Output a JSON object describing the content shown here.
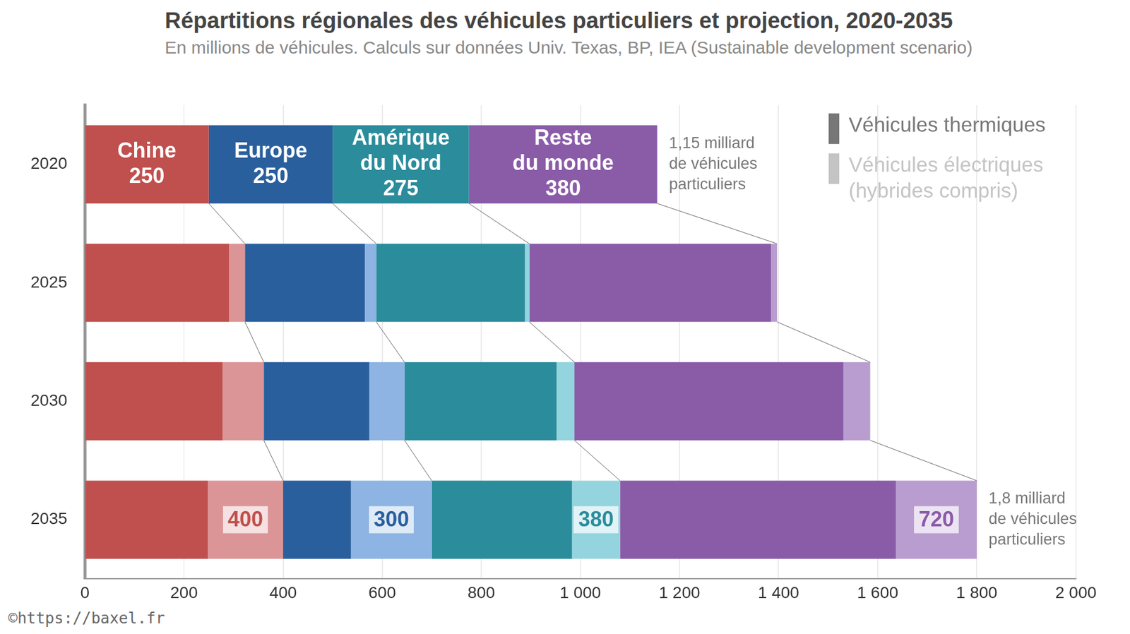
{
  "chart_data": {
    "type": "bar",
    "orientation": "horizontal",
    "stacked": true,
    "data_labels": true,
    "grid": true,
    "legend": "top-right",
    "title": "Répartitions régionales des véhicules particuliers et projection, 2020-2035",
    "subtitle": "En millions de véhicules. Calculs sur données Univ. Texas, BP, IEA (Sustainable development scenario)",
    "source": "©https://baxel.fr",
    "categories": [
      "2020",
      "2025",
      "2030",
      "2035"
    ],
    "legend_entries": [
      {
        "name": "Véhicules thermiques",
        "color": "#777777"
      },
      {
        "name": "Véhicules électriques\n(hybrides compris)",
        "color": "#c4c4c4"
      }
    ],
    "series": [
      {
        "name": "Chine",
        "color": "#c0504d",
        "values": [
          250,
          291,
          278,
          248
        ],
        "electric": {
          "color": "#dc9596",
          "values": [
            0,
            32,
            83,
            152
          ]
        },
        "totals": [
          250,
          null,
          null,
          400
        ],
        "label_color": "#c0504d"
      },
      {
        "name": "Europe",
        "color": "#2a5f9e",
        "values": [
          250,
          242,
          213,
          137
        ],
        "electric": {
          "color": "#8db4e2",
          "values": [
            0,
            23,
            71,
            163
          ]
        },
        "totals": [
          250,
          null,
          null,
          300
        ],
        "label_color": "#2a5f9e"
      },
      {
        "name": "Amérique du Nord",
        "color": "#2b8c9b",
        "values": [
          275,
          300,
          307,
          283
        ],
        "electric": {
          "color": "#93d4de",
          "values": [
            0,
            9,
            36,
            97
          ]
        },
        "totals": [
          275,
          null,
          null,
          380
        ],
        "label_color": "#2b8c9b"
      },
      {
        "name": "Reste du monde",
        "color": "#8a5ca8",
        "values": [
          380,
          488,
          543,
          557
        ],
        "electric": {
          "color": "#b99dd0",
          "values": [
            0,
            12,
            54,
            163
          ]
        },
        "totals": [
          380,
          null,
          null,
          720
        ],
        "label_color": "#8a5ca8"
      }
    ],
    "annotations": [
      {
        "category": "2020",
        "text": "1,15 milliard\nde véhicules\nparticuliers"
      },
      {
        "category": "2035",
        "text": "1,8 milliard\nde véhicules\nparticuliers"
      }
    ],
    "xlim": [
      0,
      2000
    ],
    "xticks": [
      0,
      200,
      400,
      600,
      800,
      {
        "value": 1000,
        "label": "1 000"
      },
      {
        "value": 1200,
        "label": "1 200"
      },
      {
        "value": 1400,
        "label": "1 400"
      },
      {
        "value": 1600,
        "label": "1 600"
      },
      {
        "value": 1800,
        "label": "1 800"
      },
      {
        "value": 2000,
        "label": "2 000"
      }
    ]
  }
}
